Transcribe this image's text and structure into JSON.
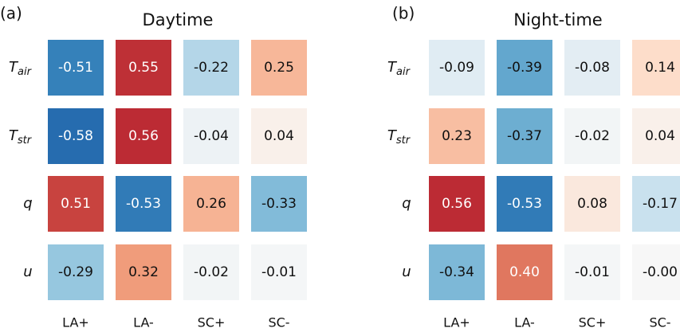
{
  "chart_data": [
    {
      "type": "heatmap",
      "panel": "(a)",
      "title": "Daytime",
      "rows": [
        {
          "text": "T",
          "subscript": "air"
        },
        {
          "text": "T",
          "subscript": "str"
        },
        {
          "text": "q"
        },
        {
          "text": "u"
        }
      ],
      "columns": [
        "LA+",
        "LA-",
        "SC+",
        "SC-"
      ],
      "values": [
        [
          -0.51,
          0.55,
          -0.22,
          0.25
        ],
        [
          -0.58,
          0.56,
          -0.04,
          0.04
        ],
        [
          0.51,
          -0.53,
          0.26,
          -0.33
        ],
        [
          -0.29,
          0.32,
          -0.02,
          -0.01
        ]
      ],
      "value_labels": [
        [
          "-0.51",
          "0.55",
          "-0.22",
          "0.25"
        ],
        [
          "-0.58",
          "0.56",
          "-0.04",
          "0.04"
        ],
        [
          "0.51",
          "-0.53",
          "0.26",
          "-0.33"
        ],
        [
          "-0.29",
          "0.32",
          "-0.02",
          "-0.01"
        ]
      ],
      "color_range": [
        -0.6,
        0.6
      ],
      "colors": [
        "#2166ac",
        "#4393c3",
        "#92c5de",
        "#d1e5f0",
        "#f7f7f7",
        "#fddbc7",
        "#f4a582",
        "#d6604d",
        "#b2182b"
      ]
    },
    {
      "type": "heatmap",
      "panel": "(b)",
      "title": "Night-time",
      "rows": [
        {
          "text": "T",
          "subscript": "air"
        },
        {
          "text": "T",
          "subscript": "str"
        },
        {
          "text": "q"
        },
        {
          "text": "u"
        }
      ],
      "columns": [
        "LA+",
        "LA-",
        "SC+",
        "SC-"
      ],
      "values": [
        [
          -0.09,
          -0.39,
          -0.08,
          0.14
        ],
        [
          0.23,
          -0.37,
          -0.02,
          0.04
        ],
        [
          0.56,
          -0.53,
          0.08,
          -0.17
        ],
        [
          -0.34,
          0.4,
          -0.01,
          0
        ]
      ],
      "value_labels": [
        [
          "-0.09",
          "-0.39",
          "-0.08",
          "0.14"
        ],
        [
          "0.23",
          "-0.37",
          "-0.02",
          "0.04"
        ],
        [
          "0.56",
          "-0.53",
          "0.08",
          "-0.17"
        ],
        [
          "-0.34",
          "0.40",
          "-0.01",
          "-0.00"
        ]
      ],
      "color_range": [
        -0.6,
        0.6
      ],
      "colors": [
        "#2166ac",
        "#4393c3",
        "#92c5de",
        "#d1e5f0",
        "#f7f7f7",
        "#fddbc7",
        "#f4a582",
        "#d6604d",
        "#b2182b"
      ]
    }
  ]
}
